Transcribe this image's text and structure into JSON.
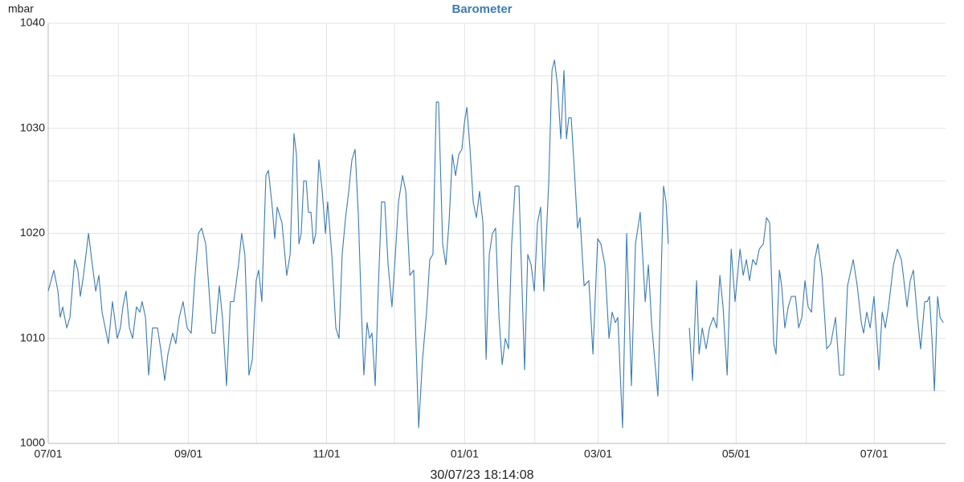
{
  "chart_data": {
    "type": "line",
    "title": "Barometer",
    "y_label": "mbar",
    "timestamp": "30/07/23 18:14:08",
    "color": "#3b7bb5",
    "grid": true,
    "xlim": [
      0,
      396.5
    ],
    "xticks": [
      {
        "value": 0,
        "label": "07/01"
      },
      {
        "value": 62,
        "label": "09/01"
      },
      {
        "value": 123,
        "label": "11/01"
      },
      {
        "value": 184,
        "label": "01/01"
      },
      {
        "value": 243,
        "label": "03/01"
      },
      {
        "value": 304,
        "label": "05/01"
      },
      {
        "value": 365,
        "label": "07/01"
      }
    ],
    "xminor": [
      31,
      92,
      153,
      215,
      274,
      335
    ],
    "ylim": [
      1000,
      1040
    ],
    "yticks": [
      1000,
      1010,
      1020,
      1030,
      1040
    ],
    "yminor": [
      1005,
      1015,
      1025,
      1035
    ],
    "x": [
      0,
      2.5,
      4.3,
      5.3,
      6.4,
      8.2,
      9.6,
      11.7,
      13.1,
      14.2,
      15.6,
      17.8,
      19.5,
      21,
      22.4,
      23.8,
      25.2,
      26.6,
      28.4,
      30.5,
      31.9,
      33,
      34.4,
      35.9,
      37.3,
      39,
      40.5,
      41.5,
      43,
      44.4,
      46.1,
      48.3,
      49.7,
      51.5,
      52.9,
      55,
      56.4,
      57.9,
      59.6,
      61.4,
      63.2,
      64.9,
      66.4,
      67.8,
      69.6,
      70.6,
      72.4,
      73.8,
      75.6,
      77,
      78.8,
      80.5,
      82,
      84.1,
      85.5,
      86.9,
      88.7,
      90.2,
      91.9,
      93,
      94.4,
      96.2,
      97.3,
      99,
      100.1,
      101.2,
      103.3,
      105.4,
      106.9,
      108.6,
      109.7,
      110.8,
      111.8,
      112.9,
      114,
      115,
      116.1,
      117.2,
      118.2,
      119.6,
      121.1,
      122.5,
      123.5,
      125.3,
      127.1,
      128.5,
      129.9,
      131.4,
      132.8,
      134.2,
      135.6,
      137,
      138.5,
      139.5,
      140.9,
      142,
      143.1,
      144.5,
      145.9,
      147.3,
      148.7,
      150.2,
      151.9,
      153.4,
      154.8,
      156.6,
      158,
      159.8,
      161.5,
      163.7,
      165.4,
      167.2,
      168.6,
      170,
      171.5,
      172.5,
      174.3,
      175.7,
      177.1,
      178.6,
      180,
      181.4,
      182.8,
      183.9,
      185,
      186.4,
      187.8,
      189.2,
      190.6,
      192.1,
      193.5,
      194.9,
      196.3,
      197.7,
      199.2,
      200.6,
      202,
      203.4,
      204.8,
      206.3,
      208,
      210.5,
      211.9,
      213.4,
      214.8,
      216.2,
      217.6,
      219,
      221.2,
      222.6,
      223.7,
      225.1,
      226.5,
      227.9,
      229,
      230,
      231.1,
      232.5,
      233.9,
      235,
      236.8,
      238.9,
      240.7,
      242.8,
      244.2,
      246,
      247.8,
      249.2,
      250.6,
      251.7,
      253.8,
      255.6,
      257.7,
      259.5,
      261.6,
      263.8,
      265.2,
      266.6,
      269.4,
      271.9,
      273,
      274,
      278.5,
      283.3,
      284.7,
      286.5,
      287.6,
      289,
      290.7,
      292.2,
      293.9,
      295.4,
      296.8,
      298.2,
      300,
      301.8,
      303.5,
      305.7,
      307.1,
      308.5,
      309.9,
      311.3,
      312.8,
      314.2,
      316,
      317.4,
      318.8,
      320.6,
      321.6,
      323.1,
      324.1,
      325.5,
      327,
      328.4,
      330.2,
      331.6,
      333,
      334.4,
      335.8,
      337.3,
      338.7,
      340.1,
      341.9,
      344,
      345.8,
      347.9,
      349.7,
      351.5,
      353.2,
      355.7,
      357.5,
      359.3,
      360.3,
      361.7,
      363.2,
      364.9,
      367.1,
      368.5,
      369.9,
      371.3,
      373.5,
      375.2,
      377,
      378.4,
      379.5,
      380.9,
      382.3,
      384.1,
      385.5,
      387.3,
      388.4,
      389.4,
      390.5,
      391.6,
      393,
      394.1,
      395.5
    ],
    "values": [
      1014.5,
      1016.5,
      1014.5,
      1012,
      1013,
      1011,
      1012,
      1017.5,
      1016.5,
      1014,
      1016,
      1020,
      1017,
      1014.5,
      1016,
      1012.5,
      1011,
      1009.5,
      1013.5,
      1010,
      1011,
      1013,
      1014.5,
      1011,
      1010,
      1013,
      1012.5,
      1013.5,
      1012,
      1006.5,
      1011,
      1011,
      1009,
      1006,
      1008.5,
      1010.5,
      1009.5,
      1012,
      1013.5,
      1011,
      1010.5,
      1016,
      1020,
      1020.5,
      1019,
      1016,
      1010.5,
      1010.5,
      1015,
      1012,
      1005.5,
      1013.5,
      1013.5,
      1017,
      1020,
      1018,
      1006.5,
      1008,
      1015.5,
      1016.5,
      1013.5,
      1025.5,
      1026,
      1022.5,
      1019.5,
      1022.5,
      1021,
      1016,
      1018,
      1029.5,
      1027.5,
      1019,
      1020,
      1025,
      1025,
      1022,
      1022,
      1019,
      1020,
      1027,
      1024,
      1020,
      1023,
      1018,
      1011,
      1010,
      1018,
      1021.5,
      1024,
      1027,
      1028,
      1022,
      1012,
      1006.5,
      1011.5,
      1010,
      1010.5,
      1005.5,
      1015,
      1023,
      1023,
      1017,
      1013,
      1018,
      1023,
      1025.5,
      1024,
      1016,
      1016.5,
      1001.5,
      1008,
      1012.5,
      1017.5,
      1018,
      1032.5,
      1032.5,
      1019,
      1017,
      1021,
      1027.5,
      1025.5,
      1027.5,
      1028,
      1030.5,
      1032,
      1028,
      1023,
      1021.5,
      1024,
      1021,
      1008,
      1018,
      1020,
      1020.5,
      1012,
      1007.5,
      1010,
      1009,
      1019,
      1024.5,
      1024.5,
      1007,
      1018,
      1017,
      1014.5,
      1021,
      1022.5,
      1014.5,
      1025,
      1035.5,
      1036.5,
      1034,
      1029,
      1035.5,
      1029,
      1031,
      1031,
      1026,
      1020.5,
      1021.5,
      1015,
      1015.5,
      1008.5,
      1019.5,
      1019,
      1017,
      1010,
      1012.5,
      1011.5,
      1012,
      1001.5,
      1020,
      1005.5,
      1019,
      1022,
      1013.5,
      1017,
      1011.5,
      1004.5,
      1024.5,
      1023,
      1019,
      null,
      1011,
      1006,
      1015.5,
      1008.5,
      1011,
      1009,
      1011,
      1012,
      1011,
      1016,
      1013,
      1006.5,
      1018.5,
      1013.5,
      1018.5,
      1016,
      1017.5,
      1015.5,
      1017.5,
      1017,
      1018.5,
      1019,
      1021.5,
      1021,
      1009.5,
      1008.5,
      1016.5,
      1015,
      1011,
      1013,
      1014,
      1014,
      1011,
      1012,
      1015.5,
      1013,
      1012.5,
      1017.5,
      1019,
      1016,
      1009,
      1009.5,
      1012,
      1006.5,
      1006.5,
      1015,
      1017.5,
      1015,
      1011.5,
      1010.5,
      1012.5,
      1011,
      1014,
      1007,
      1012.5,
      1011,
      1013,
      1017,
      1018.5,
      1017.5,
      1015,
      1013,
      1015.5,
      1016.5,
      1012,
      1009,
      1013.5,
      1013.5,
      1014,
      1010,
      1005,
      1014,
      1012,
      1011.5
    ]
  }
}
